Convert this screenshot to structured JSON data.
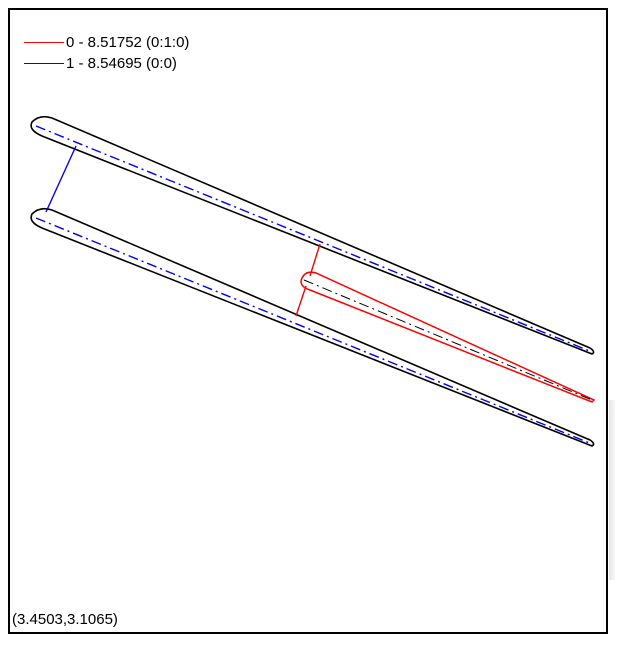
{
  "legend": [
    {
      "label": "0 - 8.51752 (0:1:0)",
      "color": "#ff0000"
    },
    {
      "label": "1 - 8.54695 (0:0)",
      "color": "#0000ff"
    }
  ],
  "coordinate_readout": "(3.4503,3.1065)",
  "colors": {
    "outline": "#000000",
    "series_0": "#ff0000",
    "series_1": "#0000ff",
    "background": "#ffffff"
  }
}
